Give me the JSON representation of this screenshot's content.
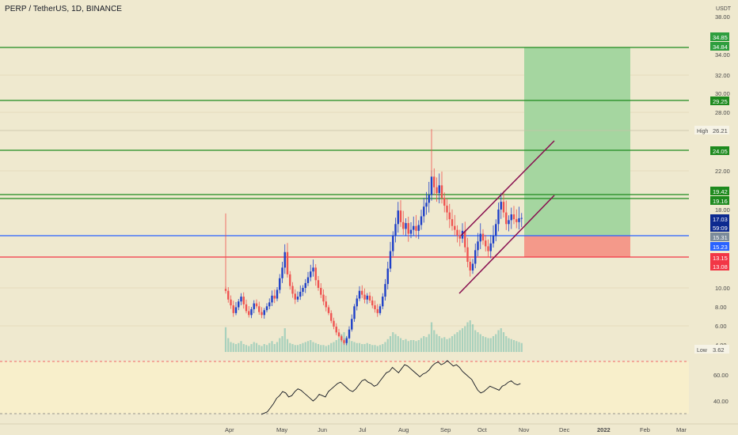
{
  "header": {
    "symbol_title": "PERP / TetherUS, 1D, BINANCE"
  },
  "price_axis": {
    "currency": "USDT",
    "ticks": [
      "38.00",
      "34.00",
      "32.00",
      "30.00",
      "28.00",
      "22.00",
      "18.00",
      "10.00",
      "8.00",
      "6.00",
      "4.00"
    ]
  },
  "badges": {
    "tp3_a": "34.85",
    "tp3_b": "34.84",
    "tp2": "29.25",
    "high_label": "High",
    "high_value": "26.21",
    "tp1": "24.05",
    "r1": "19.42",
    "r2": "19.16",
    "last_price": "17.03",
    "countdown": "59:09",
    "entry": "15.31",
    "entry2": "15.23",
    "stop1": "13.15",
    "stop2": "13.08",
    "low_label": "Low",
    "low_value": "3.62"
  },
  "rsi_axis": {
    "ticks": [
      "60.00",
      "40.00"
    ]
  },
  "time_axis": {
    "labels": [
      "Apr",
      "May",
      "Jun",
      "Jul",
      "Aug",
      "Sep",
      "Oct",
      "Nov",
      "Dec",
      "2022",
      "Feb",
      "Mar"
    ]
  },
  "colors": {
    "background": "#efe9cf",
    "green_line": "#1e8a1e",
    "blue_line": "#2962ff",
    "red_line": "#f23645",
    "target_zone": "#a5d6a0",
    "stop_zone": "#f4998a",
    "channel": "#880e4f",
    "rsi_line": "#131722"
  },
  "chart_data": {
    "type": "candlestick",
    "symbol": "PERP / TetherUS",
    "interval": "1D",
    "exchange": "BINANCE",
    "price_range": [
      3.5,
      38.5
    ],
    "horizontal_lines": [
      {
        "value": 34.85,
        "color": "green"
      },
      {
        "value": 29.25,
        "color": "green"
      },
      {
        "value": 24.05,
        "color": "green"
      },
      {
        "value": 19.42,
        "color": "green"
      },
      {
        "value": 19.16,
        "color": "green"
      },
      {
        "value": 15.31,
        "color": "blue"
      },
      {
        "value": 13.15,
        "color": "red"
      }
    ],
    "high": 26.21,
    "low": 3.62,
    "position": {
      "entry": 15.31,
      "target": 34.85,
      "stop": 13.15
    },
    "approx_closes": [
      9.5,
      8.6,
      8.0,
      7.2,
      7.8,
      8.4,
      8.9,
      8.1,
      7.4,
      7.0,
      7.6,
      8.2,
      7.9,
      7.3,
      7.0,
      7.5,
      7.9,
      8.3,
      9.0,
      8.7,
      9.6,
      10.8,
      11.9,
      13.5,
      11.2,
      10.0,
      9.2,
      8.6,
      8.9,
      9.4,
      9.8,
      10.3,
      10.9,
      11.5,
      11.9,
      10.6,
      9.8,
      9.1,
      8.4,
      7.8,
      7.2,
      6.4,
      5.8,
      5.2,
      4.8,
      4.4,
      4.1,
      4.6,
      5.5,
      6.6,
      7.9,
      8.7,
      9.5,
      9.1,
      8.6,
      9.0,
      8.5,
      8.0,
      7.6,
      7.2,
      7.9,
      8.9,
      10.2,
      11.8,
      13.6,
      15.2,
      16.4,
      17.8,
      16.6,
      15.9,
      16.5,
      15.4,
      15.8,
      16.2,
      15.7,
      16.3,
      17.2,
      18.2,
      18.6,
      19.4,
      21.3,
      20.2,
      19.6,
      20.4,
      19.1,
      18.3,
      17.6,
      16.9,
      16.2,
      15.8,
      15.2,
      14.9,
      15.7,
      14.0,
      12.5,
      11.6,
      12.3,
      13.7,
      14.6,
      15.4,
      14.7,
      14.1,
      13.6,
      14.4,
      15.2,
      16.4,
      17.9,
      18.7,
      17.6,
      16.4,
      16.8,
      17.4,
      16.9,
      16.6,
      17.0,
      17.03
    ],
    "approx_volumes": [
      25,
      14,
      10,
      9,
      8,
      9,
      11,
      8,
      7,
      6,
      8,
      10,
      9,
      7,
      6,
      8,
      7,
      9,
      11,
      8,
      10,
      14,
      16,
      24,
      13,
      9,
      8,
      7,
      7,
      8,
      9,
      10,
      11,
      12,
      10,
      9,
      8,
      7,
      7,
      6,
      7,
      9,
      10,
      12,
      14,
      18,
      20,
      15,
      12,
      11,
      10,
      9,
      9,
      8,
      8,
      9,
      8,
      7,
      7,
      6,
      7,
      8,
      10,
      13,
      16,
      20,
      18,
      16,
      14,
      12,
      13,
      11,
      12,
      12,
      11,
      12,
      14,
      16,
      15,
      18,
      30,
      22,
      18,
      16,
      14,
      15,
      13,
      14,
      16,
      18,
      20,
      22,
      24,
      26,
      30,
      32,
      28,
      22,
      20,
      18,
      16,
      15,
      14,
      14,
      16,
      18,
      22,
      24,
      20,
      16,
      14,
      13,
      12,
      11,
      10,
      9
    ],
    "rsi_axis_ticks": [
      60,
      40
    ],
    "approx_rsi": [
      30,
      31,
      32,
      35,
      38,
      42,
      44,
      47,
      46,
      43,
      44,
      47,
      49,
      48,
      46,
      44,
      42,
      40,
      42,
      45,
      44,
      43,
      47,
      49,
      51,
      53,
      54,
      52,
      50,
      48,
      47,
      49,
      52,
      55,
      56,
      54,
      53,
      51,
      52,
      55,
      58,
      61,
      62,
      65,
      63,
      61,
      64,
      67,
      66,
      64,
      62,
      60,
      58,
      60,
      61,
      63,
      66,
      68,
      69,
      67,
      68,
      70,
      68,
      66,
      67,
      65,
      62,
      60,
      58,
      56,
      52,
      48,
      46,
      47,
      49,
      51,
      50,
      49,
      48,
      51,
      52,
      54,
      55,
      53,
      52,
      53
    ]
  }
}
